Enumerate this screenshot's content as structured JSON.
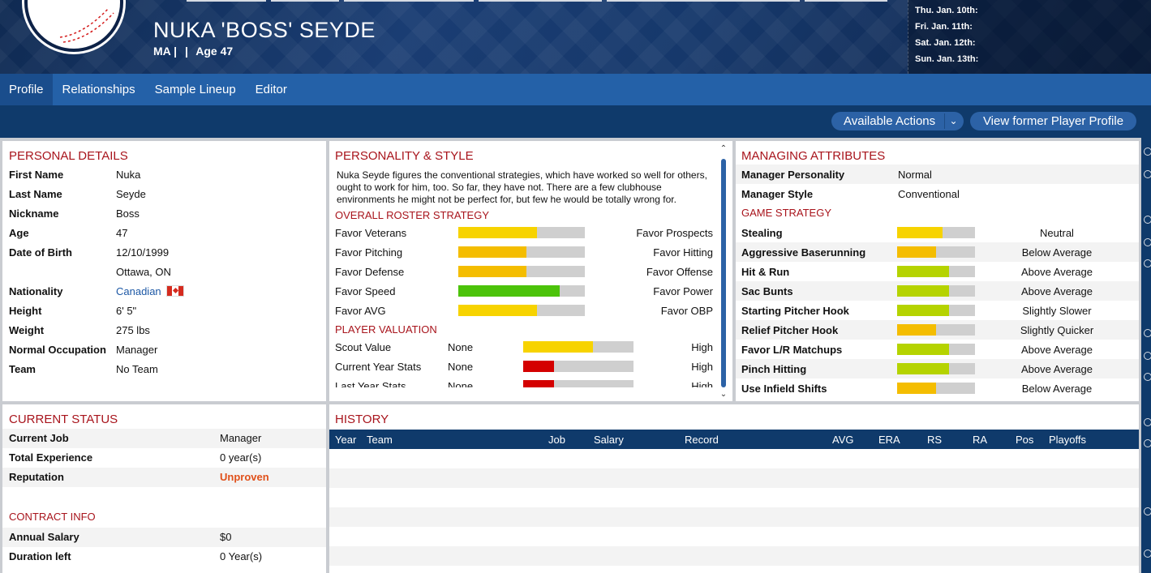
{
  "header": {
    "player_name": "NUKA 'BOSS' SEYDE",
    "position": "MA |",
    "team_sep": "|",
    "age": "Age 47",
    "calendar": [
      "Thu. Jan. 10th:",
      "Fri. Jan. 11th:",
      "Sat. Jan. 12th:",
      "Sun. Jan. 13th:"
    ]
  },
  "tabs": [
    "Profile",
    "Relationships",
    "Sample Lineup",
    "Editor"
  ],
  "actions": {
    "available_actions": "Available Actions",
    "view_former": "View former Player Profile"
  },
  "personal": {
    "title": "PERSONAL DETAILS",
    "rows": [
      {
        "k": "First Name",
        "v": "Nuka"
      },
      {
        "k": "Last Name",
        "v": "Seyde"
      },
      {
        "k": "Nickname",
        "v": "Boss"
      },
      {
        "k": "Age",
        "v": "47"
      },
      {
        "k": "Date of Birth",
        "v": "12/10/1999"
      },
      {
        "k": "",
        "v": "Ottawa, ON"
      },
      {
        "k": "Nationality",
        "v": "Canadian"
      },
      {
        "k": "Height",
        "v": "6' 5\""
      },
      {
        "k": "Weight",
        "v": "275 lbs"
      },
      {
        "k": "Normal Occupation",
        "v": "Manager"
      },
      {
        "k": "Team",
        "v": "No Team"
      }
    ]
  },
  "personality": {
    "title": "PERSONALITY & STYLE",
    "description": "Nuka Seyde figures the conventional strategies, which have worked so well for others, ought to work for him, too. So far, they have not. There are a few clubhouse environments he might not be perfect for, but few he would be totally wrong for.",
    "roster_title": "OVERALL ROSTER STRATEGY",
    "roster": [
      {
        "left": "Favor Veterans",
        "right": "Favor Prospects",
        "level": 0.62,
        "color": "#f7d300"
      },
      {
        "left": "Favor Pitching",
        "right": "Favor Hitting",
        "level": 0.54,
        "color": "#f4bd00"
      },
      {
        "left": "Favor Defense",
        "right": "Favor Offense",
        "level": 0.54,
        "color": "#f4bd00"
      },
      {
        "left": "Favor Speed",
        "right": "Favor Power",
        "level": 0.8,
        "color": "#4cc30a"
      },
      {
        "left": "Favor AVG",
        "right": "Favor OBP",
        "level": 0.62,
        "color": "#f7d300"
      }
    ],
    "valuation_title": "PLAYER VALUATION",
    "valuation": [
      {
        "label": "Scout Value",
        "mid": "None",
        "right": "High",
        "level": 0.63,
        "color": "#f7d300"
      },
      {
        "label": "Current Year Stats",
        "mid": "None",
        "right": "High",
        "level": 0.28,
        "color": "#d40000"
      },
      {
        "label": "Last Year Stats",
        "mid": "None",
        "right": "High",
        "level": 0.28,
        "color": "#d40000"
      }
    ]
  },
  "managing": {
    "title": "MANAGING ATTRIBUTES",
    "top": [
      {
        "k": "Manager Personality",
        "v": "Normal"
      },
      {
        "k": "Manager Style",
        "v": "Conventional"
      }
    ],
    "strategy_title": "GAME STRATEGY",
    "strategy": [
      {
        "k": "Stealing",
        "r": "Neutral",
        "level": 0.58,
        "color": "#f7d300"
      },
      {
        "k": "Aggressive Baserunning",
        "r": "Below Average",
        "level": 0.5,
        "color": "#f4bd00"
      },
      {
        "k": "Hit & Run",
        "r": "Above Average",
        "level": 0.67,
        "color": "#b5d300"
      },
      {
        "k": "Sac Bunts",
        "r": "Above Average",
        "level": 0.67,
        "color": "#b5d300"
      },
      {
        "k": "Starting Pitcher Hook",
        "r": "Slightly Slower",
        "level": 0.67,
        "color": "#b5d300"
      },
      {
        "k": "Relief Pitcher Hook",
        "r": "Slightly Quicker",
        "level": 0.5,
        "color": "#f4bd00"
      },
      {
        "k": "Favor L/R Matchups",
        "r": "Above Average",
        "level": 0.67,
        "color": "#b5d300"
      },
      {
        "k": "Pinch Hitting",
        "r": "Above Average",
        "level": 0.67,
        "color": "#b5d300"
      },
      {
        "k": "Use Infield Shifts",
        "r": "Below Average",
        "level": 0.5,
        "color": "#f4bd00"
      }
    ]
  },
  "status": {
    "title": "CURRENT STATUS",
    "rows": [
      {
        "k": "Current Job",
        "v": "Manager"
      },
      {
        "k": "Total Experience",
        "v": "0 year(s)"
      },
      {
        "k": "Reputation",
        "v": "Unproven"
      }
    ],
    "contract_title": "CONTRACT INFO",
    "contract": [
      {
        "k": "Annual Salary",
        "v": "$0"
      },
      {
        "k": "Duration left",
        "v": "0 Year(s)"
      }
    ]
  },
  "history": {
    "title": "HISTORY",
    "columns": [
      "Year",
      "Team",
      "Job",
      "Salary",
      "Record",
      "AVG",
      "ERA",
      "RS",
      "RA",
      "Pos",
      "Playoffs"
    ]
  }
}
